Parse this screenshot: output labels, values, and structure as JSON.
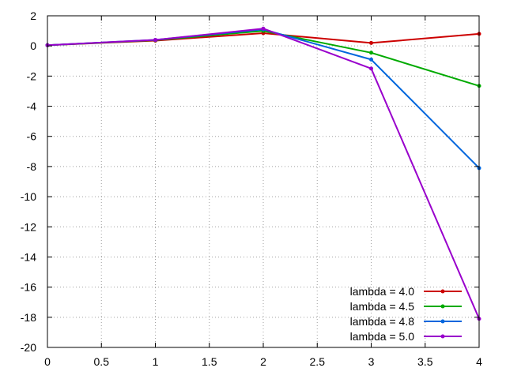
{
  "chart_data": {
    "type": "line",
    "title": "",
    "xlabel": "",
    "ylabel": "",
    "xlim": [
      0,
      4
    ],
    "ylim": [
      -20,
      2
    ],
    "grid": true,
    "legend_position": "bottom-right",
    "x_ticks": [
      0,
      0.5,
      1,
      1.5,
      2,
      2.5,
      3,
      3.5,
      4
    ],
    "x_tick_labels": [
      "0",
      "0.5",
      "1",
      "1.5",
      "2",
      "2.5",
      "3",
      "3.5",
      "4"
    ],
    "y_ticks": [
      2,
      0,
      -2,
      -4,
      -6,
      -8,
      -10,
      -12,
      -14,
      -16,
      -18,
      -20
    ],
    "y_tick_labels": [
      "2",
      "0",
      "-2",
      "-4",
      "-6",
      "-8",
      "-10",
      "-12",
      "-14",
      "-16",
      "-18",
      "-20"
    ],
    "series": [
      {
        "name": "lambda = 4.0",
        "color": "#cc0000",
        "x": [
          0,
          1,
          2,
          3,
          4
        ],
        "y": [
          0.05,
          0.35,
          0.85,
          0.2,
          0.8
        ]
      },
      {
        "name": "lambda = 4.5",
        "color": "#00aa00",
        "x": [
          0,
          1,
          2,
          3,
          4
        ],
        "y": [
          0.05,
          0.38,
          1.0,
          -0.45,
          -2.65
        ]
      },
      {
        "name": "lambda = 4.8",
        "color": "#0066dd",
        "x": [
          0,
          1,
          2,
          3,
          4
        ],
        "y": [
          0.05,
          0.4,
          1.1,
          -0.9,
          -8.1
        ]
      },
      {
        "name": "lambda = 5.0",
        "color": "#9900cc",
        "x": [
          0,
          1,
          2,
          3,
          4
        ],
        "y": [
          0.05,
          0.4,
          1.15,
          -1.5,
          -18.1
        ]
      }
    ]
  }
}
